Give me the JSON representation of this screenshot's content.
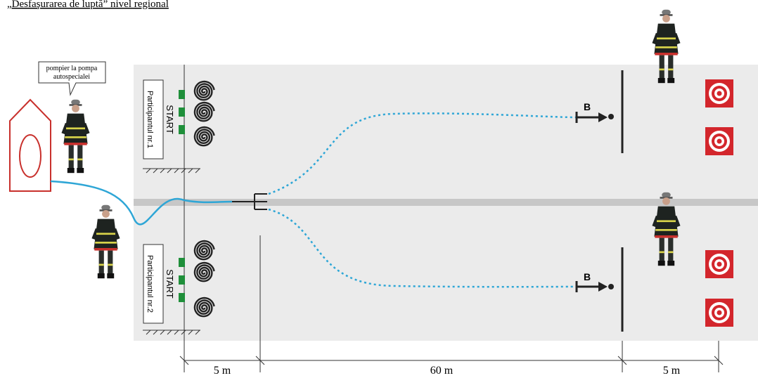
{
  "title": "„Desfaşurarea de luptă” nivel regional",
  "callout": {
    "lines": [
      "pompier la pompa",
      "autospecialei"
    ]
  },
  "lanes": [
    {
      "start": "START",
      "participant": "Participantul nr.1",
      "nozzle": "B"
    },
    {
      "start": "START",
      "participant": "Participantul nr.2",
      "nozzle": "B"
    }
  ],
  "dimensions": [
    "5 m",
    "60 m",
    "5 m"
  ]
}
